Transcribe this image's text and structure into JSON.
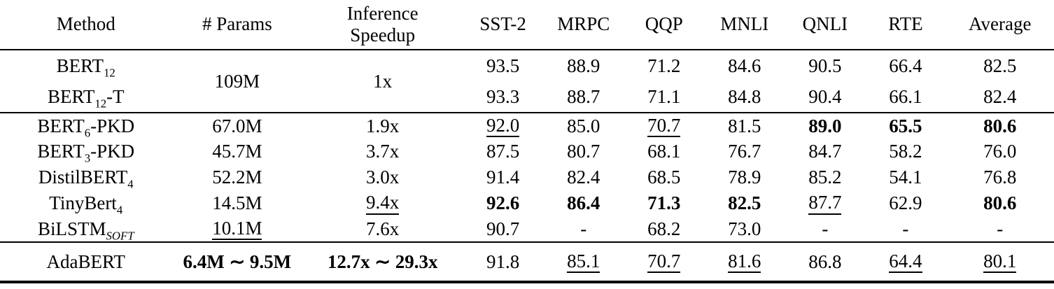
{
  "table": {
    "columns": [
      {
        "key": "method",
        "label": "Method"
      },
      {
        "key": "params",
        "label": "# Params"
      },
      {
        "key": "speedup",
        "label": "Inference\nSpeedup"
      },
      {
        "key": "sst2",
        "label": "SST-2"
      },
      {
        "key": "mrpc",
        "label": "MRPC"
      },
      {
        "key": "qqp",
        "label": "QQP"
      },
      {
        "key": "mnli",
        "label": "MNLI"
      },
      {
        "key": "qnli",
        "label": "QNLI"
      },
      {
        "key": "rte",
        "label": "RTE"
      },
      {
        "key": "avg",
        "label": "Average"
      }
    ],
    "groups": [
      {
        "name": "teachers",
        "merged": {
          "params": {
            "text": "109M"
          },
          "speedup": {
            "text": "1x"
          }
        },
        "rows": [
          {
            "method": {
              "base": "BERT",
              "sub": "12",
              "suffix": ""
            },
            "scores": [
              {
                "text": "93.5"
              },
              {
                "text": "88.9"
              },
              {
                "text": "71.2"
              },
              {
                "text": "84.6"
              },
              {
                "text": "90.5"
              },
              {
                "text": "66.4"
              },
              {
                "text": "82.5"
              }
            ]
          },
          {
            "method": {
              "base": "BERT",
              "sub": "12",
              "suffix": "-T"
            },
            "scores": [
              {
                "text": "93.3"
              },
              {
                "text": "88.7"
              },
              {
                "text": "71.1"
              },
              {
                "text": "84.8"
              },
              {
                "text": "90.4"
              },
              {
                "text": "66.1"
              },
              {
                "text": "82.4"
              }
            ]
          }
        ]
      },
      {
        "name": "baselines",
        "rows": [
          {
            "method": {
              "base": "BERT",
              "sub": "6",
              "suffix": "-PKD"
            },
            "params": {
              "text": "67.0M"
            },
            "speedup": {
              "text": "1.9x"
            },
            "scores": [
              {
                "text": "92.0",
                "underline": true
              },
              {
                "text": "85.0"
              },
              {
                "text": "70.7",
                "underline": true
              },
              {
                "text": "81.5"
              },
              {
                "text": "89.0",
                "bold": true
              },
              {
                "text": "65.5",
                "bold": true
              },
              {
                "text": "80.6",
                "bold": true
              }
            ]
          },
          {
            "method": {
              "base": "BERT",
              "sub": "3",
              "suffix": "-PKD"
            },
            "params": {
              "text": "45.7M"
            },
            "speedup": {
              "text": "3.7x"
            },
            "scores": [
              {
                "text": "87.5"
              },
              {
                "text": "80.7"
              },
              {
                "text": "68.1"
              },
              {
                "text": "76.7"
              },
              {
                "text": "84.7"
              },
              {
                "text": "58.2"
              },
              {
                "text": "76.0"
              }
            ]
          },
          {
            "method": {
              "base": "DistilBERT",
              "sub": "4",
              "suffix": ""
            },
            "params": {
              "text": "52.2M"
            },
            "speedup": {
              "text": "3.0x"
            },
            "scores": [
              {
                "text": "91.4"
              },
              {
                "text": "82.4"
              },
              {
                "text": "68.5"
              },
              {
                "text": "78.9"
              },
              {
                "text": "85.2"
              },
              {
                "text": "54.1"
              },
              {
                "text": "76.8"
              }
            ]
          },
          {
            "method": {
              "base": "TinyBert",
              "sub": "4",
              "suffix": ""
            },
            "params": {
              "text": "14.5M"
            },
            "speedup": {
              "text": "9.4x",
              "underline": true
            },
            "scores": [
              {
                "text": "92.6",
                "bold": true
              },
              {
                "text": "86.4",
                "bold": true
              },
              {
                "text": "71.3",
                "bold": true
              },
              {
                "text": "82.5",
                "bold": true
              },
              {
                "text": "87.7",
                "underline": true
              },
              {
                "text": "62.9"
              },
              {
                "text": "80.6",
                "bold": true
              }
            ]
          },
          {
            "method": {
              "base": "BiLSTM",
              "sub": "SOFT",
              "sub_italic": true,
              "suffix": ""
            },
            "params": {
              "text": "10.1M",
              "underline": true
            },
            "speedup": {
              "text": "7.6x"
            },
            "scores": [
              {
                "text": "90.7"
              },
              {
                "text": "-"
              },
              {
                "text": "68.2"
              },
              {
                "text": "73.0"
              },
              {
                "text": "-"
              },
              {
                "text": "-"
              },
              {
                "text": "-"
              }
            ]
          }
        ]
      },
      {
        "name": "ours",
        "rows": [
          {
            "method": {
              "base": "AdaBERT",
              "sub": "",
              "suffix": ""
            },
            "params": {
              "text": "6.4M ∼ 9.5M",
              "bold": true
            },
            "speedup": {
              "text": "12.7x ∼ 29.3x",
              "bold": true
            },
            "scores": [
              {
                "text": "91.8"
              },
              {
                "text": "85.1",
                "underline": true
              },
              {
                "text": "70.7",
                "underline": true
              },
              {
                "text": "81.6",
                "underline": true
              },
              {
                "text": "86.8"
              },
              {
                "text": "64.4",
                "underline": true
              },
              {
                "text": "80.1",
                "underline": true
              }
            ]
          }
        ]
      }
    ]
  }
}
